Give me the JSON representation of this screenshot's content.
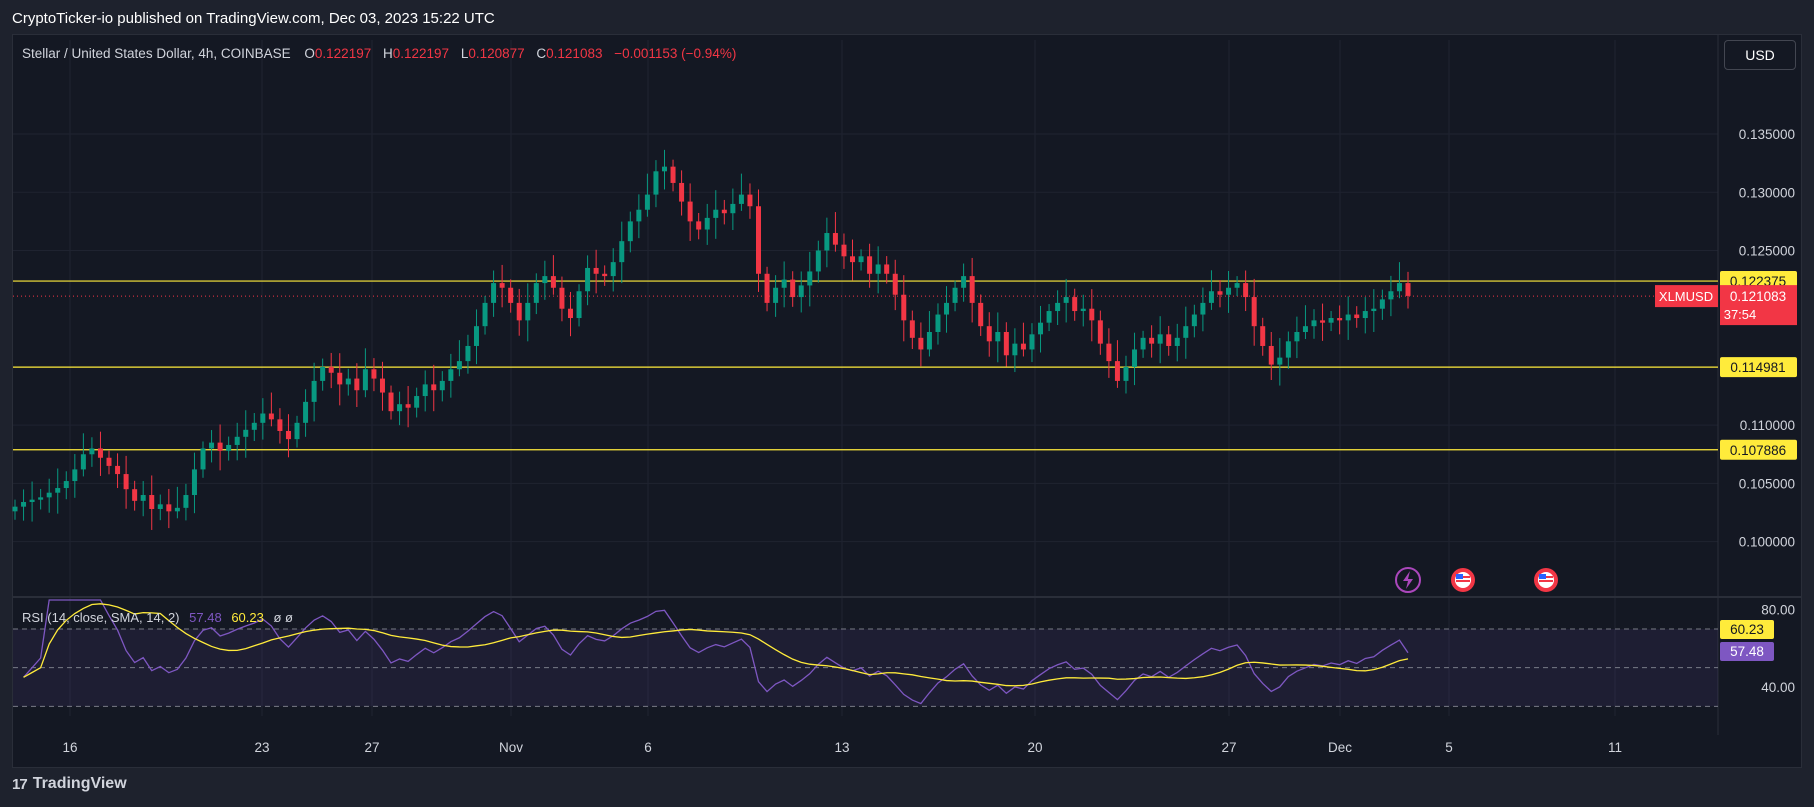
{
  "publisher": "CryptoTicker-io published on TradingView.com, Dec 03, 2023 15:22 UTC",
  "header": {
    "symbol": "Stellar / United States Dollar, 4h, COINBASE",
    "o_label": "O",
    "o_value": "0.122197",
    "h_label": "H",
    "h_value": "0.122197",
    "l_label": "L",
    "l_value": "0.120877",
    "c_label": "C",
    "c_value": "0.121083",
    "change": "−0.001153 (−0.94%)"
  },
  "currency_button": "USD",
  "footer": {
    "logo_mark": "17",
    "logo_text": "TradingView"
  },
  "colors": {
    "up": "#089981",
    "down": "#f23645",
    "level": "#ffeb3b",
    "rsi_line": "#7e57c2",
    "rsi_sma": "#ffeb3b",
    "bg": "#141823",
    "grid": "#1f2330"
  },
  "chart_data": {
    "type": "candlestick",
    "symbol": "XLMUSD",
    "timeframe": "4h",
    "price_axis": {
      "ticks": [
        "0.135000",
        "0.130000",
        "0.125000",
        "0.110000",
        "0.105000",
        "0.100000"
      ],
      "range": [
        0.0955,
        0.1405
      ]
    },
    "x_axis": {
      "ticks": [
        "16",
        "23",
        "27",
        "Nov",
        "6",
        "13",
        "20",
        "27",
        "Dec",
        "5",
        "11"
      ]
    },
    "current_price": {
      "symbol": "XLMUSD",
      "value": "0.121083",
      "countdown": "37:54"
    },
    "levels": [
      {
        "label": "0.122375",
        "value": 0.122375
      },
      {
        "label": "0.114981",
        "value": 0.114981
      },
      {
        "label": "0.107886",
        "value": 0.107886
      }
    ],
    "closes": [
      0.103,
      0.1034,
      0.1036,
      0.1038,
      0.1042,
      0.1046,
      0.1052,
      0.1062,
      0.1075,
      0.108,
      0.1072,
      0.1065,
      0.1058,
      0.1045,
      0.1035,
      0.104,
      0.1028,
      0.1032,
      0.1026,
      0.1029,
      0.104,
      0.1062,
      0.108,
      0.1085,
      0.1078,
      0.1083,
      0.109,
      0.1096,
      0.1102,
      0.111,
      0.1105,
      0.1095,
      0.1088,
      0.1102,
      0.112,
      0.1138,
      0.115,
      0.1145,
      0.1135,
      0.114,
      0.113,
      0.1148,
      0.114,
      0.1128,
      0.1112,
      0.1118,
      0.1115,
      0.1125,
      0.1135,
      0.113,
      0.1138,
      0.1148,
      0.1155,
      0.1168,
      0.1185,
      0.1205,
      0.1222,
      0.1218,
      0.1205,
      0.119,
      0.1205,
      0.1222,
      0.1228,
      0.1218,
      0.12,
      0.1192,
      0.1215,
      0.1235,
      0.123,
      0.1228,
      0.124,
      0.1258,
      0.1275,
      0.1285,
      0.1298,
      0.1318,
      0.1322,
      0.1308,
      0.1292,
      0.1275,
      0.1268,
      0.1278,
      0.1285,
      0.1282,
      0.129,
      0.1298,
      0.1288,
      0.123,
      0.1205,
      0.1218,
      0.1225,
      0.121,
      0.122,
      0.1232,
      0.125,
      0.1265,
      0.1255,
      0.1245,
      0.124,
      0.1245,
      0.123,
      0.1238,
      0.123,
      0.1212,
      0.119,
      0.1175,
      0.1165,
      0.118,
      0.1195,
      0.1205,
      0.1218,
      0.1228,
      0.1205,
      0.1185,
      0.1172,
      0.118,
      0.116,
      0.117,
      0.1165,
      0.1178,
      0.1188,
      0.1198,
      0.1205,
      0.121,
      0.1198,
      0.12,
      0.119,
      0.117,
      0.1155,
      0.1138,
      0.115,
      0.1165,
      0.1175,
      0.117,
      0.1178,
      0.1168,
      0.1175,
      0.1185,
      0.1195,
      0.1205,
      0.1215,
      0.1212,
      0.1218,
      0.1222,
      0.121,
      0.1185,
      0.1168,
      0.1152,
      0.1158,
      0.1172,
      0.118,
      0.1185,
      0.119,
      0.1188,
      0.1192,
      0.119,
      0.1195,
      0.1192,
      0.1198,
      0.12,
      0.1208,
      0.1215,
      0.1222,
      0.1211
    ],
    "rsi": {
      "label": "RSI (14, close, SMA, 14, 2)",
      "rsi_value": "57.48",
      "sma_value": "60.23",
      "extra": "ø  ø",
      "axis_ticks": [
        "80.00",
        "40.00"
      ],
      "range": [
        25,
        85
      ],
      "bands": [
        70,
        50,
        30
      ]
    }
  }
}
